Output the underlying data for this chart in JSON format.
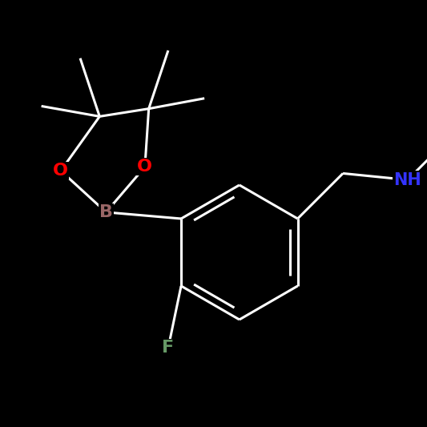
{
  "bg": "#000000",
  "bond_color": "#000000",
  "line_color": "#ffffff",
  "bond_lw": 2.2,
  "atom_colors": {
    "O": "#ff0000",
    "B": "#996666",
    "N": "#3333ff",
    "F": "#669966"
  },
  "figsize": [
    5.33,
    5.33
  ],
  "dpi": 100
}
